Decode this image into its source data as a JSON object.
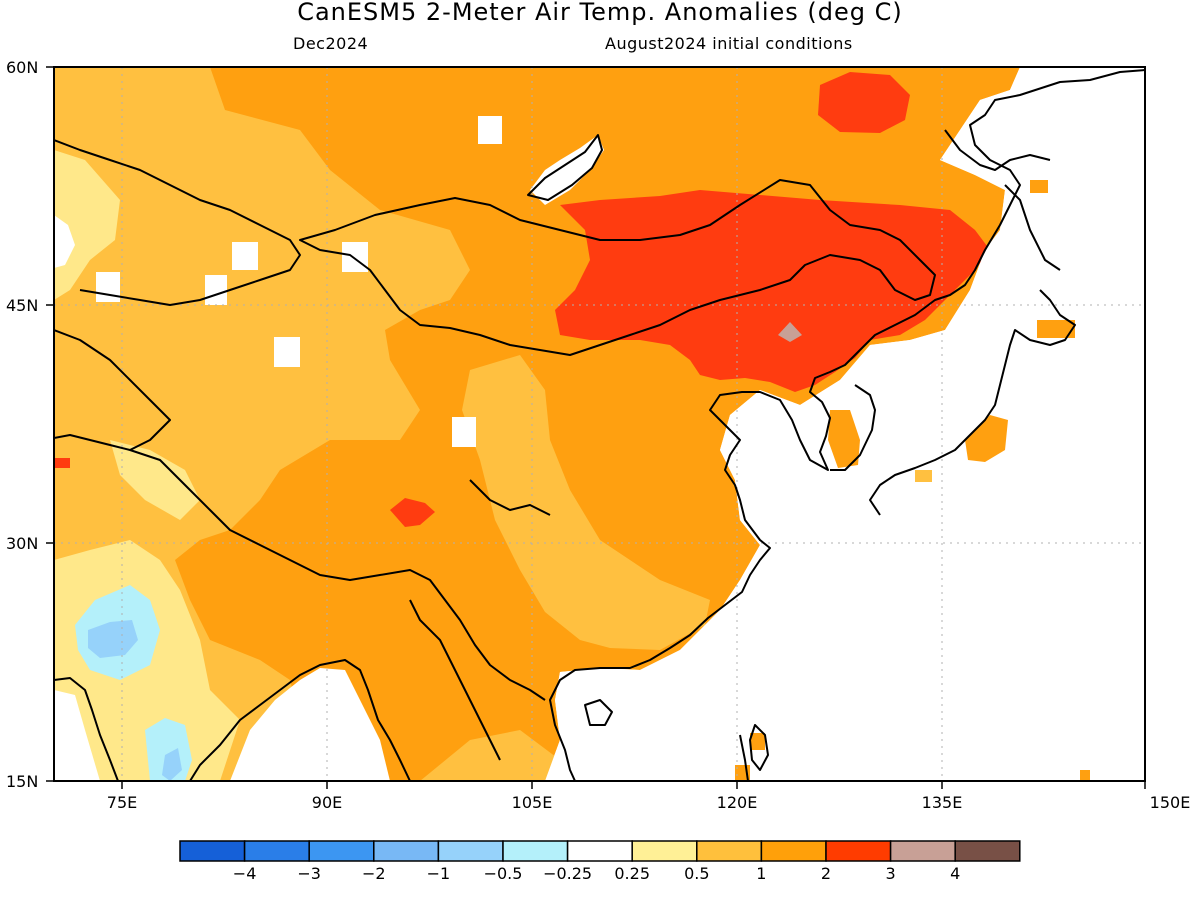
{
  "title": "CanESM5 2-Meter Air Temp. Anomalies (deg C)",
  "subtitle_left": "Dec2024",
  "subtitle_right": "August2024 initial conditions",
  "lat_ticks": [
    "60N",
    "45N",
    "30N",
    "15N"
  ],
  "lon_ticks": [
    "75E",
    "90E",
    "105E",
    "120E",
    "135E",
    "150E"
  ],
  "colorbar": {
    "labels": [
      "−4",
      "−3",
      "−2",
      "−1",
      "−0.5",
      "−0.25",
      "0.25",
      "0.5",
      "1",
      "2",
      "3",
      "4"
    ],
    "colors": [
      "#1560d8",
      "#2a7ee8",
      "#3c96f2",
      "#78b8f5",
      "#96d2fa",
      "#b4f0fa",
      "#ffffff",
      "#fff096",
      "#ffc03c",
      "#ffa00a",
      "#ff3c00",
      "#c8a096",
      "#785046"
    ]
  },
  "legend_colors": {
    "land_outline": "#000000",
    "white": "#ffffff",
    "light_yellow": "#ffe88a",
    "light_orange": "#ffc040",
    "orange": "#ffa010",
    "red": "#ff3c10",
    "mauve": "#c8a096",
    "cyan_light": "#b4f0fa",
    "blue_light": "#96d2fa",
    "blue_mid": "#78b8f5"
  }
}
